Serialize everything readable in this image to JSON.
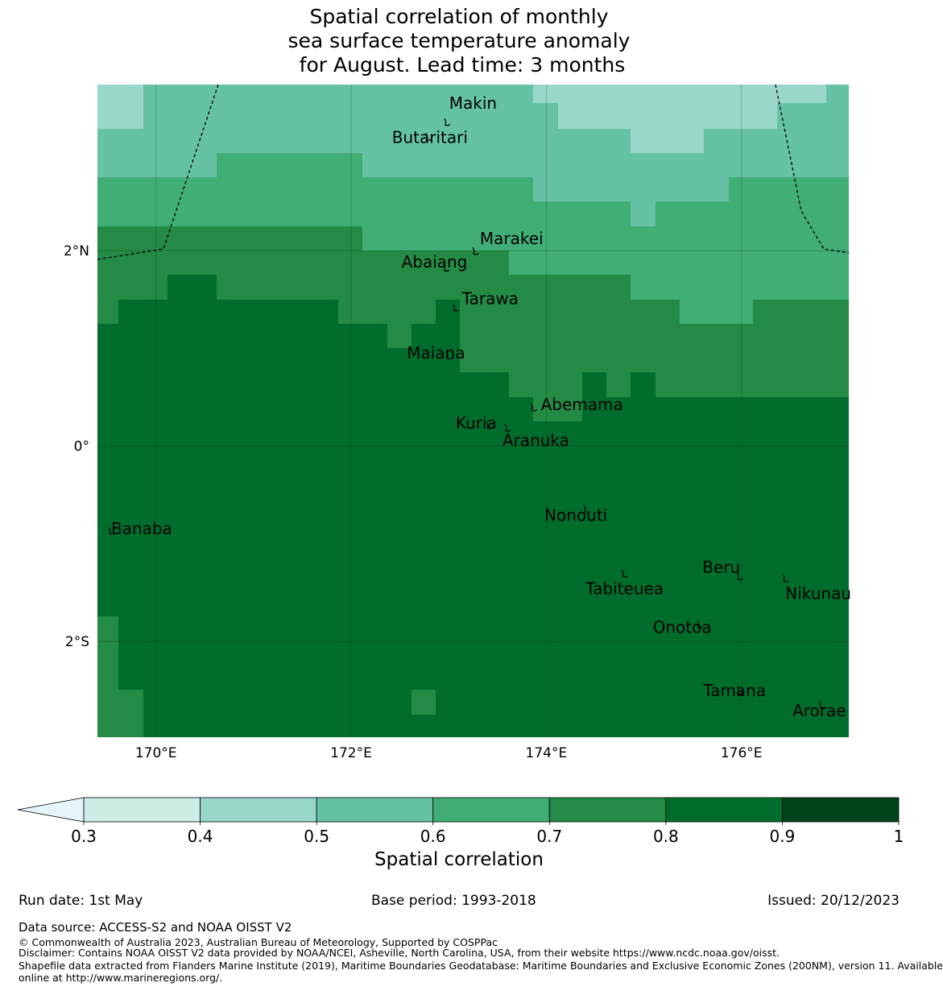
{
  "title": {
    "line1": "Spatial correlation of monthly",
    "line2": "sea surface temperature anomaly",
    "line3": " for August. Lead time: 3 months"
  },
  "map": {
    "lon_range": [
      169.4,
      177.1
    ],
    "lat_range": [
      -2.98,
      3.7
    ],
    "lon_ticks": [
      "170°E",
      "172°E",
      "174°E",
      "176°E"
    ],
    "lat_ticks": [
      "2°N",
      "0°",
      "2°S"
    ],
    "colors": [
      "#ccece6",
      "#99d8c9",
      "#66c2a4",
      "#41ae76",
      "#238b45",
      "#006d2c",
      "#00441b"
    ],
    "bins": [
      0.3,
      0.4,
      0.5,
      0.6,
      0.7,
      0.8,
      0.9,
      1.0
    ],
    "under_color": "#e5f5f9",
    "grid": "on",
    "islands": [
      {
        "name": "Makin",
        "lon": 172.98,
        "lat": 3.32
      },
      {
        "name": "Butaritari",
        "lon": 172.79,
        "lat": 3.17
      },
      {
        "name": "Marakei",
        "lon": 173.27,
        "lat": 2.0
      },
      {
        "name": "Abaiang",
        "lon": 172.97,
        "lat": 1.83
      },
      {
        "name": "Tarawa",
        "lon": 173.07,
        "lat": 1.42
      },
      {
        "name": "Maiana",
        "lon": 173.0,
        "lat": 0.93
      },
      {
        "name": "Abemama",
        "lon": 173.87,
        "lat": 0.4
      },
      {
        "name": "Kuria",
        "lon": 173.41,
        "lat": 0.22
      },
      {
        "name": "Aranuka",
        "lon": 173.6,
        "lat": 0.19
      },
      {
        "name": "Nonouti",
        "lon": 174.41,
        "lat": -0.64
      },
      {
        "name": "Banaba",
        "lon": 169.54,
        "lat": -0.86
      },
      {
        "name": "Tabiteuea",
        "lon": 174.8,
        "lat": -1.3
      },
      {
        "name": "Beru",
        "lon": 175.98,
        "lat": -1.33
      },
      {
        "name": "Nikunau",
        "lon": 176.45,
        "lat": -1.35
      },
      {
        "name": "Onotoa",
        "lon": 175.57,
        "lat": -1.82
      },
      {
        "name": "Tamana",
        "lon": 175.98,
        "lat": -2.5
      },
      {
        "name": "Arorae",
        "lon": 176.82,
        "lat": -2.64
      }
    ]
  },
  "colorbar": {
    "ticks": [
      "0.3",
      "0.4",
      "0.5",
      "0.6",
      "0.7",
      "0.8",
      "0.9",
      "1"
    ],
    "label": "Spatial correlation"
  },
  "footer": {
    "run_date": "Run date: 1st May",
    "base_period": "Base period: 1993-2018",
    "issued": "Issued: 20/12/2023",
    "data_source": "Data source: ACCESS-S2 and NOAA OISST V2",
    "copyright": "© Commonwealth of Australia 2023, Australian Bureau of Meteorology, Supported by COSPPac",
    "disclaimer": "Disclaimer: Contains NOAA OISST V2 data provided by NOAA/NCEI, Asheville, North Carolina, USA, from their website https://www.ncdc.noaa.gov/oisst.",
    "shapefile_line1": "Shapefile data extracted from Flanders Marine Institute (2019), Maritime Boundaries Geodatabase: Maritime Boundaries and Exclusive Economic Zones (200NM), version 11. Available",
    "shapefile_line2": "online at http://www.marineregions.org/."
  }
}
